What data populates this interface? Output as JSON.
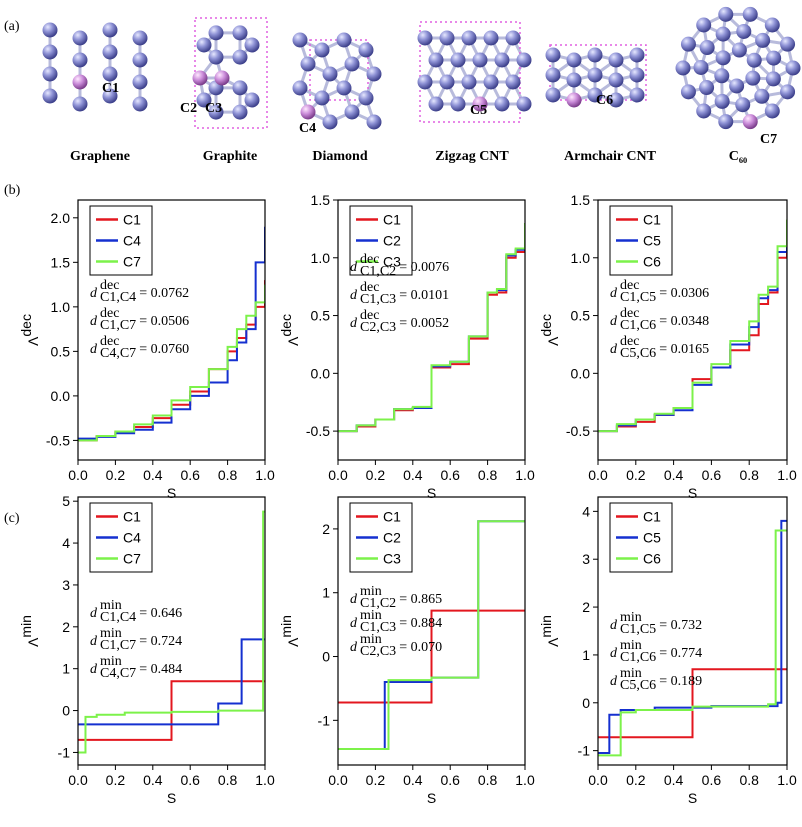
{
  "panel_labels": [
    "(a)",
    "(b)",
    "(c)"
  ],
  "structures": [
    {
      "name": "Graphene",
      "sites": [
        "C1"
      ]
    },
    {
      "name": "Graphite",
      "sites": [
        "C2",
        "C3"
      ]
    },
    {
      "name": "Diamond",
      "sites": [
        "C4"
      ]
    },
    {
      "name": "Zigzag CNT",
      "sites": [
        "C5"
      ]
    },
    {
      "name": "Armchair CNT",
      "sites": [
        "C6"
      ]
    },
    {
      "name": "C₆₀",
      "sites": [
        "C7"
      ]
    }
  ],
  "chart_data": [
    {
      "type": "line",
      "step": true,
      "xlabel": "S",
      "ylabel": "Λ",
      "ylabel_sup": "dec",
      "xlim": [
        0,
        1
      ],
      "ylim": [
        -0.72,
        2.2
      ],
      "xticks": [
        {
          "value": 0,
          "label": "0.0"
        },
        0.2,
        0.4,
        0.6,
        0.8,
        {
          "value": 1,
          "label": "1.0"
        }
      ],
      "yticks": [
        -0.5,
        {
          "value": 0,
          "label": "0.0"
        },
        0.5,
        {
          "value": 1,
          "label": "1.0"
        },
        1.5,
        {
          "value": 2,
          "label": "2.0"
        }
      ],
      "x": [
        0,
        0.1,
        0.2,
        0.3,
        0.4,
        0.5,
        0.6,
        0.7,
        0.8,
        0.85,
        0.9,
        0.95,
        1.0
      ],
      "series": [
        {
          "name": "C1",
          "color": "#e3171f",
          "values": [
            -0.5,
            -0.45,
            -0.4,
            -0.35,
            -0.25,
            -0.1,
            0.05,
            0.3,
            0.5,
            0.65,
            0.8,
            1.0,
            1.3
          ]
        },
        {
          "name": "C4",
          "color": "#1530d0",
          "values": [
            -0.48,
            -0.46,
            -0.42,
            -0.38,
            -0.3,
            -0.15,
            0.0,
            0.15,
            0.4,
            0.6,
            0.75,
            1.5,
            1.9
          ]
        },
        {
          "name": "C7",
          "color": "#7cf24a",
          "values": [
            -0.5,
            -0.45,
            -0.4,
            -0.32,
            -0.22,
            -0.05,
            0.1,
            0.3,
            0.55,
            0.75,
            0.9,
            1.05,
            1.25
          ]
        }
      ],
      "annotation_symbol": "d",
      "annotations": [
        {
          "sup": "dec",
          "sub": "C1,C4",
          "text": "= 0.0762"
        },
        {
          "sup": "dec",
          "sub": "C1,C7",
          "text": "= 0.0506"
        },
        {
          "sup": "dec",
          "sub": "C4,C7",
          "text": "= 0.0760"
        }
      ]
    },
    {
      "type": "line",
      "step": true,
      "xlabel": "S",
      "ylabel": "Λ",
      "ylabel_sup": "dec",
      "xlim": [
        0,
        1
      ],
      "ylim": [
        -0.75,
        1.5
      ],
      "xticks": [
        {
          "value": 0,
          "label": "0.0"
        },
        0.2,
        0.4,
        0.6,
        0.8,
        {
          "value": 1,
          "label": "1.0"
        }
      ],
      "yticks": [
        -0.5,
        {
          "value": 0,
          "label": "0.0"
        },
        0.5,
        {
          "value": 1,
          "label": "1.0"
        },
        1.5
      ],
      "x": [
        0,
        0.1,
        0.2,
        0.3,
        0.4,
        0.5,
        0.6,
        0.7,
        0.8,
        0.85,
        0.9,
        0.95,
        1.0
      ],
      "series": [
        {
          "name": "C1",
          "color": "#e3171f",
          "values": [
            -0.5,
            -0.46,
            -0.4,
            -0.32,
            -0.3,
            0.05,
            0.08,
            0.3,
            0.68,
            0.7,
            1.0,
            1.05,
            1.3
          ]
        },
        {
          "name": "C2",
          "color": "#1530d0",
          "values": [
            -0.5,
            -0.45,
            -0.4,
            -0.31,
            -0.3,
            0.06,
            0.1,
            0.32,
            0.7,
            0.72,
            1.02,
            1.07,
            1.3
          ]
        },
        {
          "name": "C3",
          "color": "#7cf24a",
          "values": [
            -0.5,
            -0.45,
            -0.4,
            -0.31,
            -0.29,
            0.07,
            0.1,
            0.32,
            0.7,
            0.73,
            1.03,
            1.08,
            1.3
          ]
        }
      ],
      "annotation_symbol": "d",
      "annotations": [
        {
          "sup": "dec",
          "sub": "C1,C2",
          "text": "= 0.0076"
        },
        {
          "sup": "dec",
          "sub": "C1,C3",
          "text": "= 0.0101"
        },
        {
          "sup": "dec",
          "sub": "C2,C3",
          "text": "= 0.0052"
        }
      ]
    },
    {
      "type": "line",
      "step": true,
      "xlabel": "S",
      "ylabel": "Λ",
      "ylabel_sup": "dec",
      "xlim": [
        0,
        1
      ],
      "ylim": [
        -0.75,
        1.5
      ],
      "xticks": [
        {
          "value": 0,
          "label": "0.0"
        },
        0.2,
        0.4,
        0.6,
        0.8,
        {
          "value": 1,
          "label": "1.0"
        }
      ],
      "yticks": [
        -0.5,
        {
          "value": 0,
          "label": "0.0"
        },
        0.5,
        {
          "value": 1,
          "label": "1.0"
        },
        1.5
      ],
      "x": [
        0,
        0.1,
        0.2,
        0.3,
        0.4,
        0.5,
        0.6,
        0.7,
        0.8,
        0.85,
        0.9,
        0.95,
        1.0
      ],
      "series": [
        {
          "name": "C1",
          "color": "#e3171f",
          "values": [
            -0.5,
            -0.46,
            -0.42,
            -0.36,
            -0.3,
            -0.05,
            0.05,
            0.2,
            0.33,
            0.6,
            0.7,
            1.0,
            1.3
          ]
        },
        {
          "name": "C5",
          "color": "#1530d0",
          "values": [
            -0.5,
            -0.45,
            -0.4,
            -0.36,
            -0.32,
            -0.1,
            0.05,
            0.25,
            0.4,
            0.65,
            0.72,
            1.05,
            1.3
          ]
        },
        {
          "name": "C6",
          "color": "#7cf24a",
          "values": [
            -0.5,
            -0.44,
            -0.4,
            -0.35,
            -0.3,
            -0.08,
            0.08,
            0.28,
            0.45,
            0.68,
            0.75,
            1.1,
            1.33
          ]
        }
      ],
      "annotation_symbol": "d",
      "annotations": [
        {
          "sup": "dec",
          "sub": "C1,C5",
          "text": "= 0.0306"
        },
        {
          "sup": "dec",
          "sub": "C1,C6",
          "text": "= 0.0348"
        },
        {
          "sup": "dec",
          "sub": "C5,C6",
          "text": "= 0.0165"
        }
      ]
    },
    {
      "type": "line",
      "step": true,
      "xlabel": "S",
      "ylabel": "Λ",
      "ylabel_sup": "min",
      "xlim": [
        0,
        1
      ],
      "ylim": [
        -1.3,
        5.1
      ],
      "xticks": [
        {
          "value": 0,
          "label": "0.0"
        },
        0.2,
        0.4,
        0.6,
        0.8,
        {
          "value": 1,
          "label": "1.0"
        }
      ],
      "yticks": [
        -1,
        0,
        1,
        2,
        3,
        4,
        5
      ],
      "series": [
        {
          "name": "C1",
          "color": "#e3171f",
          "x": [
            0,
            0.5,
            1.0
          ],
          "values": [
            -0.7,
            0.7,
            0.7
          ]
        },
        {
          "name": "C4",
          "color": "#1530d0",
          "x": [
            0,
            0.75,
            0.875,
            1.0
          ],
          "values": [
            -0.33,
            0.17,
            1.7,
            1.7
          ]
        },
        {
          "name": "C7",
          "color": "#7cf24a",
          "x": [
            0,
            0.04,
            0.1,
            0.25,
            0.5,
            0.75,
            0.99,
            1.0
          ],
          "values": [
            -1.0,
            -0.15,
            -0.1,
            -0.05,
            -0.03,
            0.0,
            4.75,
            4.75
          ]
        }
      ],
      "annotation_symbol": "d",
      "annotations": [
        {
          "sup": "min",
          "sub": "C1,C4",
          "text": "= 0.646"
        },
        {
          "sup": "min",
          "sub": "C1,C7",
          "text": "= 0.724"
        },
        {
          "sup": "min",
          "sub": "C4,C7",
          "text": "= 0.484"
        }
      ]
    },
    {
      "type": "line",
      "step": true,
      "xlabel": "S",
      "ylabel": "Λ",
      "ylabel_sup": "min",
      "xlim": [
        0,
        1
      ],
      "ylim": [
        -1.7,
        2.5
      ],
      "xticks": [
        {
          "value": 0,
          "label": "0.0"
        },
        0.2,
        0.4,
        0.6,
        0.8,
        {
          "value": 1,
          "label": "1.0"
        }
      ],
      "yticks": [
        -1,
        0,
        1,
        2
      ],
      "series": [
        {
          "name": "C1",
          "color": "#e3171f",
          "x": [
            0,
            0.5,
            1.0
          ],
          "values": [
            -0.72,
            0.72,
            0.72
          ]
        },
        {
          "name": "C2",
          "color": "#1530d0",
          "x": [
            0,
            0.25,
            0.5,
            0.75,
            1.0
          ],
          "values": [
            -1.45,
            -0.4,
            -0.33,
            2.12,
            2.12
          ]
        },
        {
          "name": "C3",
          "color": "#7cf24a",
          "x": [
            0,
            0.27,
            0.5,
            0.75,
            1.0
          ],
          "values": [
            -1.45,
            -0.37,
            -0.33,
            2.12,
            2.12
          ]
        }
      ],
      "annotation_symbol": "d",
      "annotations": [
        {
          "sup": "min",
          "sub": "C1,C2",
          "text": "= 0.865"
        },
        {
          "sup": "min",
          "sub": "C1,C3",
          "text": "= 0.884"
        },
        {
          "sup": "min",
          "sub": "C2,C3",
          "text": "= 0.070"
        }
      ]
    },
    {
      "type": "line",
      "step": true,
      "xlabel": "S",
      "ylabel": "Λ",
      "ylabel_sup": "min",
      "xlim": [
        0,
        1
      ],
      "ylim": [
        -1.3,
        4.3
      ],
      "xticks": [
        {
          "value": 0,
          "label": "0.0"
        },
        0.2,
        0.4,
        0.6,
        0.8,
        {
          "value": 1,
          "label": "1.0"
        }
      ],
      "yticks": [
        -1,
        0,
        1,
        2,
        3,
        4
      ],
      "series": [
        {
          "name": "C1",
          "color": "#e3171f",
          "x": [
            0,
            0.5,
            1.0
          ],
          "values": [
            -0.72,
            0.7,
            0.7
          ]
        },
        {
          "name": "C5",
          "color": "#1530d0",
          "x": [
            0,
            0.06,
            0.12,
            0.3,
            0.6,
            0.95,
            0.97,
            1.0
          ],
          "values": [
            -1.05,
            -0.25,
            -0.15,
            -0.1,
            -0.07,
            0.0,
            3.8,
            3.8
          ]
        },
        {
          "name": "C6",
          "color": "#7cf24a",
          "x": [
            0,
            0.12,
            0.2,
            0.5,
            0.9,
            0.94,
            1.0
          ],
          "values": [
            -1.1,
            -0.2,
            -0.15,
            -0.08,
            -0.03,
            3.6,
            3.6
          ]
        }
      ],
      "annotation_symbol": "d",
      "annotations": [
        {
          "sup": "min",
          "sub": "C1,C5",
          "text": "= 0.732"
        },
        {
          "sup": "min",
          "sub": "C1,C6",
          "text": "= 0.774"
        },
        {
          "sup": "min",
          "sub": "C5,C6",
          "text": "= 0.189"
        }
      ]
    }
  ]
}
